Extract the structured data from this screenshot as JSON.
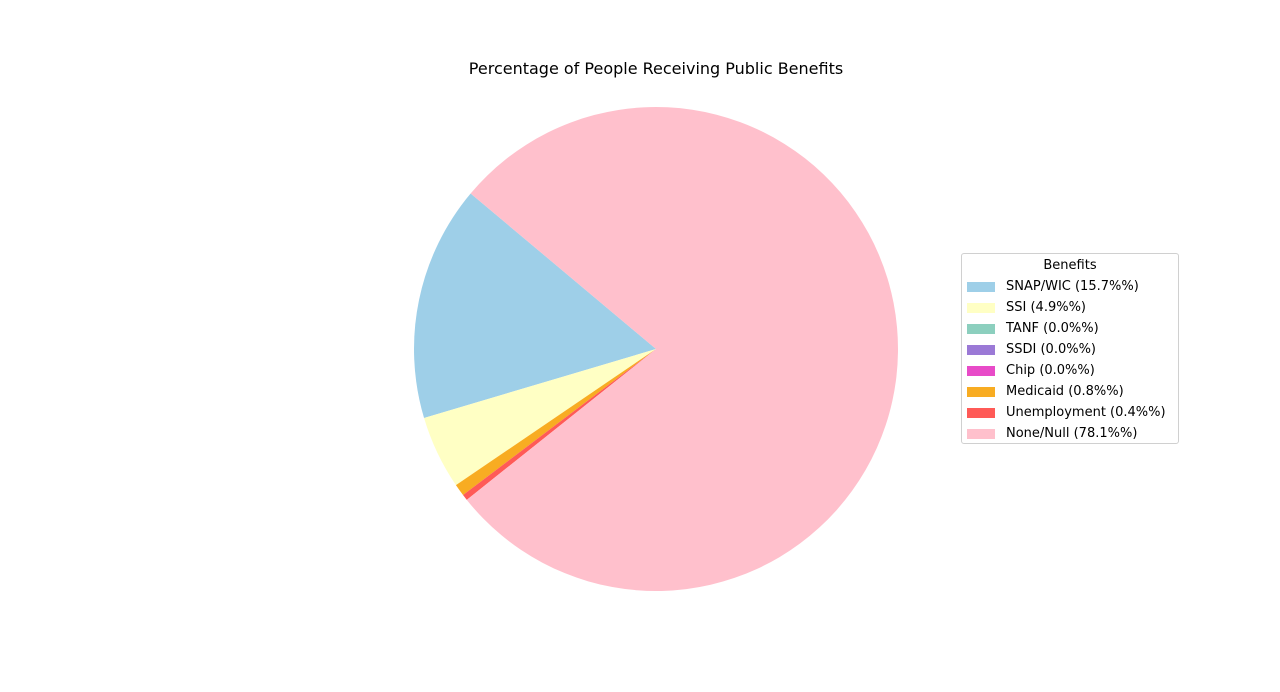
{
  "chart_data": {
    "type": "pie",
    "title": "Percentage of People Receiving Public Benefits",
    "legend_title": "Benefits",
    "legend_position": "center-right",
    "start_angle_deg": 140,
    "direction": "counterclockwise",
    "slices": [
      {
        "name": "SNAP/WIC",
        "value": 15.7,
        "label": "SNAP/WIC (15.7%%)",
        "color": "#9ecfe8"
      },
      {
        "name": "SSI",
        "value": 4.9,
        "label": "SSI (4.9%%)",
        "color": "#ffffc4"
      },
      {
        "name": "TANF",
        "value": 0.0,
        "label": "TANF (0.0%%)",
        "color": "#8ccfbe"
      },
      {
        "name": "SSDI",
        "value": 0.0,
        "label": "SSDI (0.0%%)",
        "color": "#9b79d6"
      },
      {
        "name": "Chip",
        "value": 0.0,
        "label": "Chip (0.0%%)",
        "color": "#e84bc8"
      },
      {
        "name": "Medicaid",
        "value": 0.8,
        "label": "Medicaid (0.8%%)",
        "color": "#f8ac22"
      },
      {
        "name": "Unemployment",
        "value": 0.4,
        "label": "Unemployment (0.4%%)",
        "color": "#ff5a57"
      },
      {
        "name": "None/Null",
        "value": 78.1,
        "label": "None/Null (78.1%%)",
        "color": "#ffc0cc"
      }
    ]
  }
}
